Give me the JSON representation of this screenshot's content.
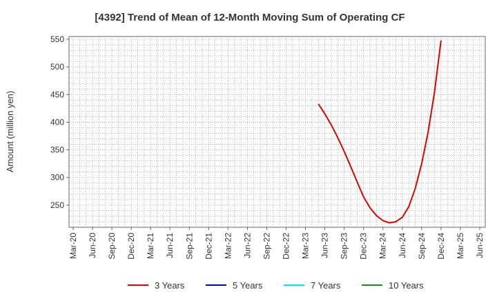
{
  "chart_data": {
    "type": "line",
    "title": "[4392]  Trend of Mean of 12-Month Moving Sum of Operating CF",
    "xlabel": "",
    "ylabel": "Amount (million yen)",
    "ylim": [
      210,
      555
    ],
    "yticks": [
      250,
      300,
      350,
      400,
      450,
      500,
      550
    ],
    "x_tick_labels": [
      "Mar-20",
      "Jun-20",
      "Sep-20",
      "Dec-20",
      "Mar-21",
      "Jun-21",
      "Sep-21",
      "Dec-21",
      "Mar-22",
      "Jun-22",
      "Sep-22",
      "Dec-22",
      "Mar-23",
      "Jun-23",
      "Sep-23",
      "Dec-23",
      "Mar-24",
      "Jun-24",
      "Sep-24",
      "Dec-24",
      "Mar-25",
      "Jun-25"
    ],
    "grid": true,
    "legend_position": "bottom",
    "series": [
      {
        "name": "3 Years",
        "color": "#dd0000",
        "x": [
          "2023-05",
          "2023-06",
          "2023-07",
          "2023-08",
          "2023-09",
          "2023-10",
          "2023-11",
          "2023-12",
          "2024-01",
          "2024-02",
          "2024-03",
          "2024-04",
          "2024-05",
          "2024-06",
          "2024-07",
          "2024-08",
          "2024-09",
          "2024-10",
          "2024-11",
          "2024-12"
        ],
        "values": [
          433,
          415,
          395,
          372,
          347,
          320,
          292,
          265,
          245,
          231,
          222,
          218,
          220,
          228,
          247,
          280,
          325,
          382,
          455,
          548
        ]
      },
      {
        "name": "5 Years",
        "color": "#0000cc",
        "x": [],
        "values": []
      },
      {
        "name": "7 Years",
        "color": "#00e5ee",
        "x": [],
        "values": []
      },
      {
        "name": "10 Years",
        "color": "#228b22",
        "x": [],
        "values": []
      }
    ]
  }
}
